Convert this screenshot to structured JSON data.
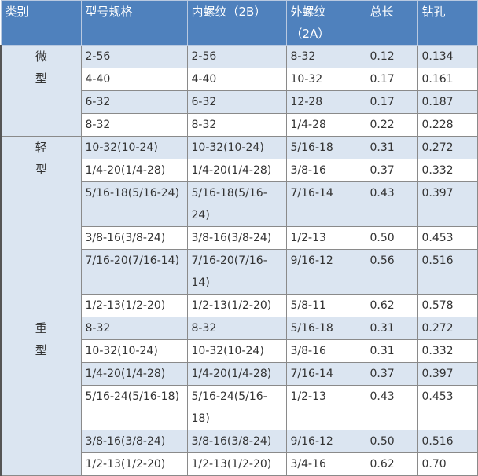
{
  "headers": [
    "类别",
    "型号规格",
    "内螺纹（2B）",
    "外螺纹（2A）",
    "总长",
    "钻孔"
  ],
  "colors": {
    "header_bg": "#4f81bd",
    "band_row": "#dbe5f1",
    "plain_row": "#ffffff"
  },
  "groups": [
    {
      "category": "微型",
      "rows": [
        [
          "2-56",
          "2-56",
          "8-32",
          "0.12",
          "0.134"
        ],
        [
          "4-40",
          "4-40",
          "10-32",
          "0.17",
          "0.161"
        ],
        [
          "6-32",
          "6-32",
          "12-28",
          "0.17",
          "0.187"
        ],
        [
          "8-32",
          "8-32",
          "1/4-28",
          "0.22",
          "0.228"
        ]
      ]
    },
    {
      "category": "轻型",
      "rows": [
        [
          "10-32(10-24)",
          "10-32(10-24)",
          "5/16-18",
          "0.31",
          "0.272"
        ],
        [
          "1/4-20(1/4-28)",
          "1/4-20(1/4-28)",
          "3/8-16",
          "0.37",
          "0.332"
        ],
        [
          "5/16-18(5/16-24)",
          "5/16-18(5/16-24)",
          "7/16-14",
          "0.43",
          "0.397"
        ],
        [
          "3/8-16(3/8-24)",
          "3/8-16(3/8-24)",
          "1/2-13",
          "0.50",
          "0.453"
        ],
        [
          "7/16-20(7/16-14)",
          "7/16-20(7/16-14)",
          "9/16-12",
          "0.56",
          "0.516"
        ],
        [
          "1/2-13(1/2-20)",
          "1/2-13(1/2-20)",
          "5/8-11",
          "0.62",
          "0.578"
        ]
      ]
    },
    {
      "category": "重型",
      "rows": [
        [
          "8-32",
          "8-32",
          "5/16-18",
          "0.31",
          "0.272"
        ],
        [
          "10-32(10-24)",
          "10-32(10-24)",
          "3/8-16",
          "0.31",
          "0.332"
        ],
        [
          "1/4-20(1/4-28)",
          "1/4-20(1/4-28)",
          "7/16-14",
          "0.37",
          "0.397"
        ],
        [
          "5/16-24(5/16-18)",
          "5/16-24(5/16-18)",
          "1/2-13",
          "0.43",
          "0.453"
        ],
        [
          "3/8-16(3/8-24)",
          "3/8-16(3/8-24)",
          "9/16-12",
          "0.50",
          "0.516"
        ],
        [
          "1/2-13(1/2-20)",
          "1/2-13(1/2-20)",
          "3/4-16",
          "0.62",
          "0.70"
        ]
      ]
    }
  ]
}
